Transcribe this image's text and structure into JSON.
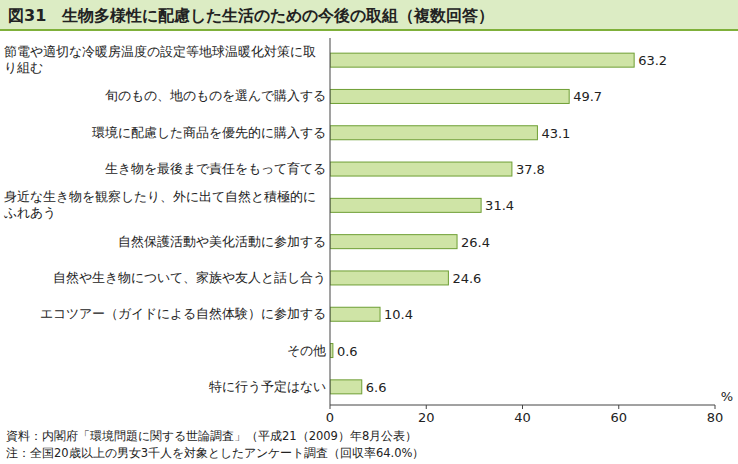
{
  "chart_data": {
    "type": "bar",
    "orientation": "horizontal",
    "title": "図31　生物多様性に配慮した生活のための今後の取組（複数回答）",
    "categories": [
      "節電や適切な冷暖房温度の設定等地球温暖化対策に取り組む",
      "旬のもの、地のものを選んで購入する",
      "環境に配慮した商品を優先的に購入する",
      "生き物を最後まで責任をもって育てる",
      "身近な生き物を観察したり、外に出て自然と積極的にふれあう",
      "自然保護活動や美化活動に参加する",
      "自然や生き物について、家族や友人と話し合う",
      "エコツアー（ガイドによる自然体験）に参加する",
      "その他",
      "特に行う予定はない"
    ],
    "values": [
      63.2,
      49.7,
      43.1,
      37.8,
      31.4,
      26.4,
      24.6,
      10.4,
      0.6,
      6.6
    ],
    "color": "#cfe4a6",
    "xlabel": "%",
    "xlim": [
      0,
      80
    ],
    "xticks": [
      0,
      20,
      40,
      60,
      80
    ],
    "grid": false,
    "data_labels": true,
    "source": "資料：内閣府「環境問題に関する世論調査」（平成21（2009）年8月公表）",
    "note": "注：全国20歳以上の男女3千人を対象としたアンケート調査（回収率64.0%）"
  }
}
